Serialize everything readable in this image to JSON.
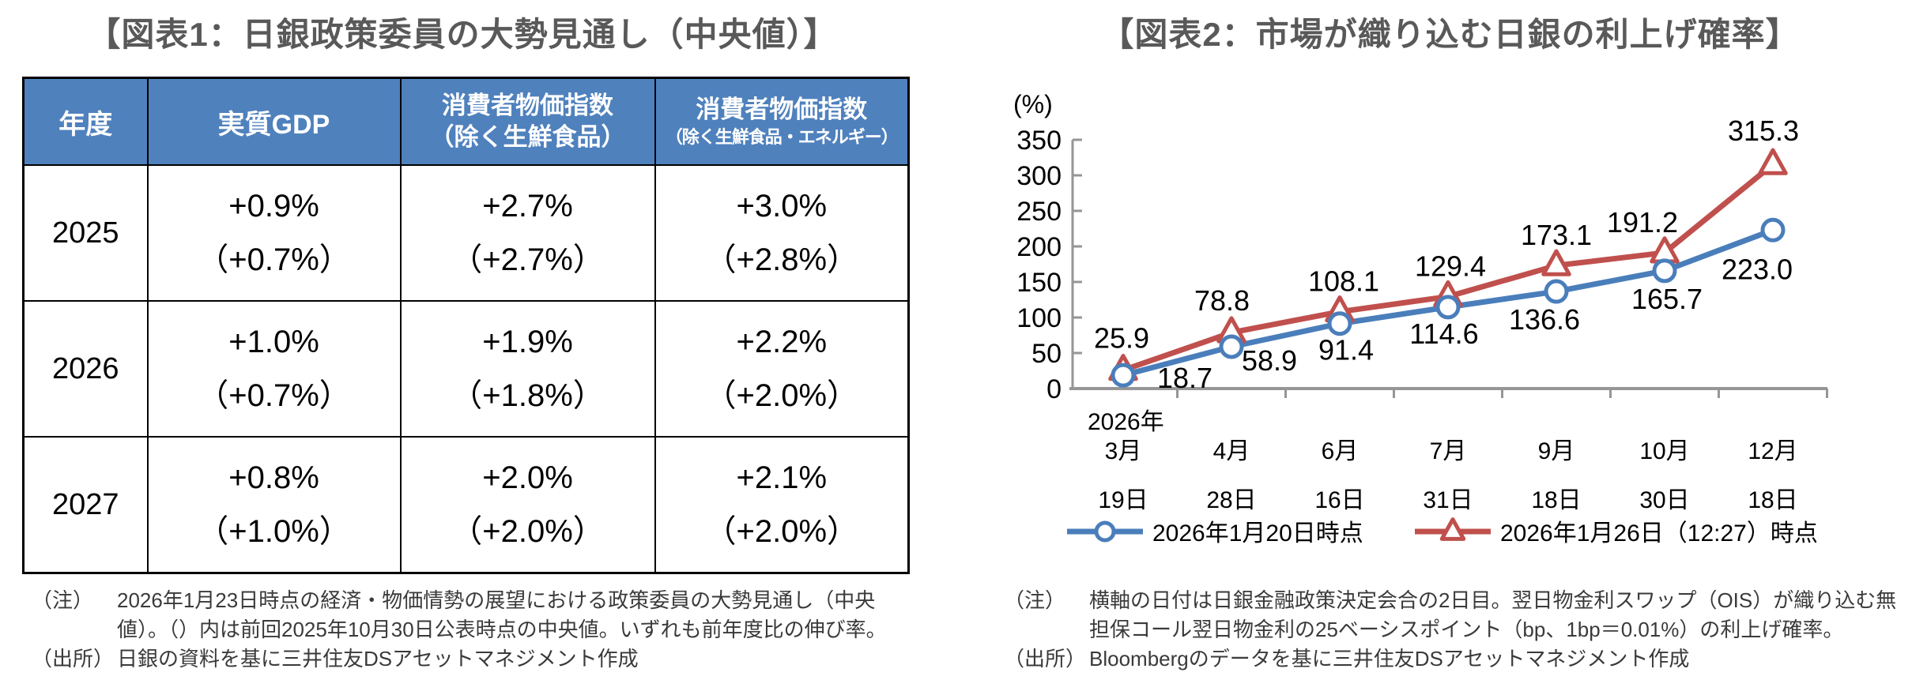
{
  "colors": {
    "header_bg": "#4f81bd",
    "series_blue": "#4a7ebb",
    "series_red": "#c0504d",
    "title_gray": "#595959",
    "axis_gray": "#969696"
  },
  "fig1": {
    "title": "【図表1：日銀政策委員の大勢見通し（中央値）】",
    "table": {
      "headers": [
        {
          "line1": "年度",
          "line2": ""
        },
        {
          "line1": "実質GDP",
          "line2": ""
        },
        {
          "line1": "消費者物価指数",
          "line2": "（除く生鮮食品）"
        },
        {
          "line1": "消費者物価指数",
          "line2": "（除く生鮮食品・エネルギー）"
        }
      ],
      "rows": [
        {
          "year": "2025",
          "cells": [
            {
              "v": "+0.9%",
              "p": "（+0.7%）"
            },
            {
              "v": "+2.7%",
              "p": "（+2.7%）"
            },
            {
              "v": "+3.0%",
              "p": "（+2.8%）"
            }
          ]
        },
        {
          "year": "2026",
          "cells": [
            {
              "v": "+1.0%",
              "p": "（+0.7%）"
            },
            {
              "v": "+1.9%",
              "p": "（+1.8%）"
            },
            {
              "v": "+2.2%",
              "p": "（+2.0%）"
            }
          ]
        },
        {
          "year": "2027",
          "cells": [
            {
              "v": "+0.8%",
              "p": "（+1.0%）"
            },
            {
              "v": "+2.0%",
              "p": "（+2.0%）"
            },
            {
              "v": "+2.1%",
              "p": "（+2.0%）"
            }
          ]
        }
      ]
    },
    "note": {
      "label": "（注）",
      "text": "2026年1月23日時点の経済・物価情勢の展望における政策委員の大勢見通し（中央値）。（）内は前回2025年10月30日公表時点の中央値。いずれも前年度比の伸び率。"
    },
    "source": {
      "label": "（出所）",
      "text": "日銀の資料を基に三井住友DSアセットマネジメント作成"
    }
  },
  "fig2": {
    "note": {
      "label": "（注）",
      "text": "横軸の日付は日銀金融政策決定会合の2日目。翌日物金利スワップ（OIS）が織り込む無担保コール翌日物金利の25ベーシスポイント（bp、1bp＝0.01%）の利上げ確率。"
    },
    "source": {
      "label": "（出所）",
      "text": "Bloombergのデータを基に三井住友DSアセットマネジメント作成"
    }
  },
  "chart_data": {
    "type": "line",
    "title": "【図表2：市場が織り込む日銀の利上げ確率】",
    "unit_label": "(%)",
    "x_year_label": "2026年",
    "categories_month": [
      "3月",
      "4月",
      "6月",
      "7月",
      "9月",
      "10月",
      "12月"
    ],
    "categories_day": [
      "19日",
      "28日",
      "16日",
      "31日",
      "18日",
      "30日",
      "18日"
    ],
    "ylim": [
      0,
      350
    ],
    "ytick_step": 50,
    "yticks": [
      0,
      50,
      100,
      150,
      200,
      250,
      300,
      350
    ],
    "grid": false,
    "legend_position": "bottom",
    "series": [
      {
        "name": "2026年1月20日時点",
        "marker": "circle",
        "color": "#4a7ebb",
        "values": [
          18.7,
          58.9,
          91.4,
          114.6,
          136.6,
          165.7,
          223.0
        ]
      },
      {
        "name": "2026年1月26日（12:27）時点",
        "marker": "triangle",
        "color": "#c0504d",
        "values": [
          25.9,
          78.8,
          108.1,
          129.4,
          173.1,
          191.2,
          315.3
        ]
      }
    ]
  }
}
